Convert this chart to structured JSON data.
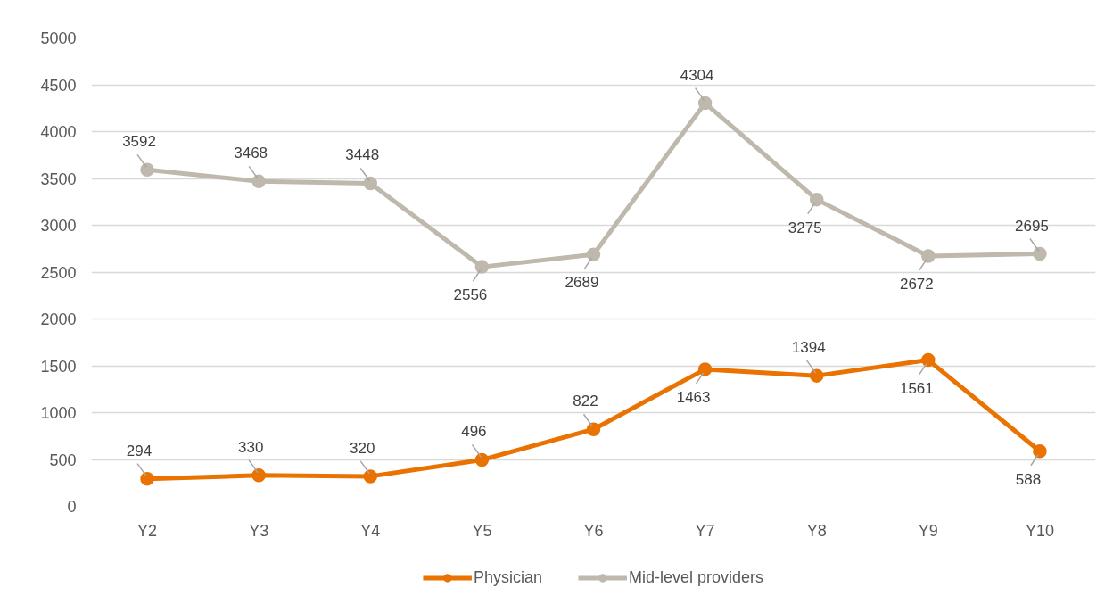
{
  "chart_data": {
    "type": "line",
    "categories": [
      "Y2",
      "Y3",
      "Y4",
      "Y5",
      "Y6",
      "Y7",
      "Y8",
      "Y9",
      "Y10"
    ],
    "series": [
      {
        "name": "Physician",
        "color": "#e97200",
        "values": [
          294,
          330,
          320,
          496,
          822,
          1463,
          1394,
          1561,
          588
        ]
      },
      {
        "name": "Mid-level providers",
        "color": "#bfb8ad",
        "values": [
          3592,
          3468,
          3448,
          2556,
          2689,
          4304,
          3275,
          2672,
          2695
        ]
      }
    ],
    "ylim": [
      0,
      5000
    ],
    "yticks": [
      0,
      500,
      1000,
      1500,
      2000,
      2500,
      3000,
      3500,
      4000,
      4500,
      5000
    ],
    "grid": "y",
    "legend": "bottom",
    "marker": "circle",
    "line_style": "solid",
    "data_labels": true
  }
}
